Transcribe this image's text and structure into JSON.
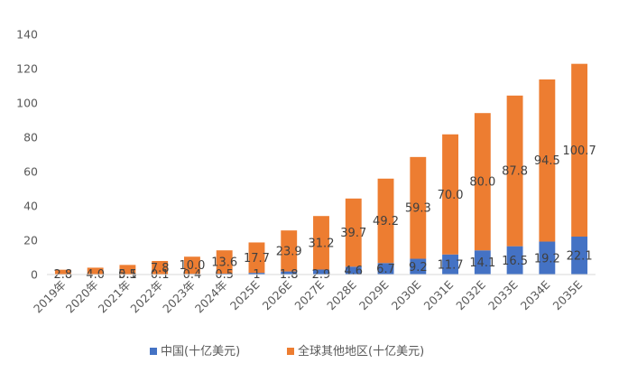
{
  "chart_data": {
    "type": "bar",
    "stacked": true,
    "categories": [
      "2019年",
      "2020年",
      "2021年",
      "2022年",
      "2023年",
      "2024年",
      "2025E",
      "2026E",
      "2027E",
      "2028E",
      "2029E",
      "2030E",
      "2031E",
      "2032E",
      "2033E",
      "2034E",
      "2035E"
    ],
    "series": [
      {
        "name": "中国(十亿美元)",
        "color": "#4472C4",
        "values": [
          0,
          0,
          0.1,
          0.1,
          0.4,
          0.5,
          1,
          1.8,
          2.9,
          4.6,
          6.7,
          9.2,
          11.7,
          14.1,
          16.5,
          19.2,
          22.1
        ],
        "labels": [
          "",
          "",
          "0.1",
          "0.1",
          "0.4",
          "0.5",
          "1",
          "1.8",
          "2.9",
          "4.6",
          "6.7",
          "9.2",
          "11.7",
          "14.1",
          "16.5",
          "19.2",
          "22.1"
        ]
      },
      {
        "name": "全球其他地区(十亿美元)",
        "color": "#ED7D31",
        "values": [
          2.8,
          4.0,
          5.5,
          7.8,
          10.0,
          13.6,
          17.7,
          23.9,
          31.2,
          39.7,
          49.2,
          59.3,
          70.0,
          80.0,
          87.8,
          94.5,
          100.7
        ],
        "labels": [
          "2.8",
          "4.0",
          "5.5",
          "7.8",
          "10.0",
          "13.6",
          "17.7",
          "23.9",
          "31.2",
          "39.7",
          "49.2",
          "59.3",
          "70.0",
          "80.0",
          "87.8",
          "94.5",
          "100.7"
        ]
      }
    ],
    "ylim": [
      0,
      140
    ],
    "yticks": [
      "0",
      "20",
      "40",
      "60",
      "80",
      "100",
      "120",
      "140"
    ],
    "grid": false,
    "legend_position": "bottom",
    "title": "",
    "xlabel": "",
    "ylabel": ""
  }
}
